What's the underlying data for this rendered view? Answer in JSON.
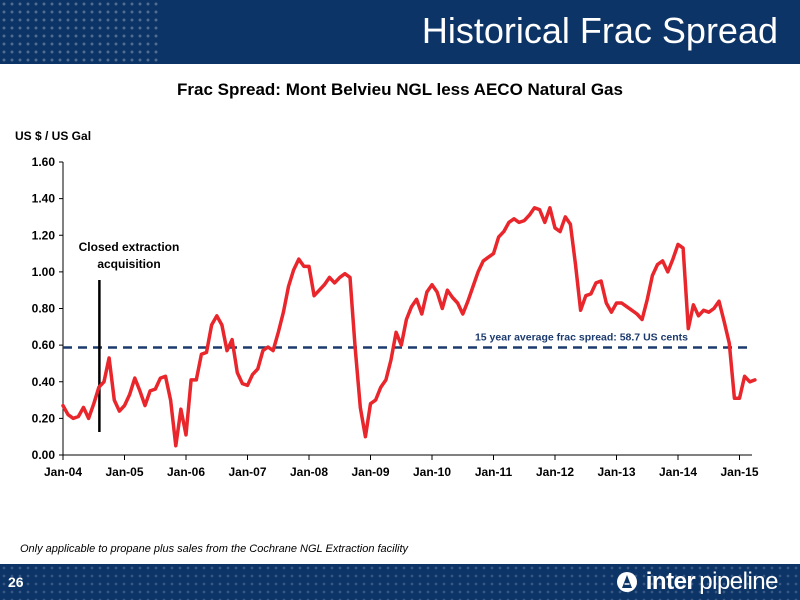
{
  "header": {
    "title": "Historical Frac Spread"
  },
  "footer": {
    "page_number": "26",
    "logo_text_bold": "inter",
    "logo_text_light": "pipeline",
    "footnote": "Only applicable to propane plus sales from the Cochrane NGL Extraction facility"
  },
  "colors": {
    "navy": "#0d3467",
    "line": "#e8262b",
    "average": "#1c3a6e",
    "grid": "#000000"
  },
  "chart_data": {
    "type": "line",
    "title": "Frac Spread: Mont Belvieu NGL less AECO Natural Gas",
    "ylabel": "US $ / US Gal",
    "xlabel": "",
    "ylim": [
      0,
      1.6
    ],
    "yticks": [
      "0.00",
      "0.20",
      "0.40",
      "0.60",
      "0.80",
      "1.00",
      "1.20",
      "1.40",
      "1.60"
    ],
    "xticks": [
      "Jan-04",
      "Jan-05",
      "Jan-06",
      "Jan-07",
      "Jan-08",
      "Jan-09",
      "Jan-10",
      "Jan-11",
      "Jan-12",
      "Jan-13",
      "Jan-14",
      "Jan-15"
    ],
    "grid": false,
    "series": [
      {
        "start": "Jan-04",
        "frequency": "monthly",
        "values": [
          0.27,
          0.22,
          0.2,
          0.21,
          0.26,
          0.2,
          0.28,
          0.37,
          0.4,
          0.53,
          0.3,
          0.24,
          0.27,
          0.33,
          0.42,
          0.35,
          0.27,
          0.35,
          0.36,
          0.42,
          0.43,
          0.3,
          0.05,
          0.25,
          0.11,
          0.41,
          0.41,
          0.55,
          0.56,
          0.71,
          0.76,
          0.71,
          0.57,
          0.63,
          0.45,
          0.39,
          0.38,
          0.44,
          0.47,
          0.57,
          0.59,
          0.57,
          0.67,
          0.78,
          0.92,
          1.01,
          1.07,
          1.03,
          1.03,
          0.87,
          0.9,
          0.93,
          0.97,
          0.94,
          0.97,
          0.99,
          0.97,
          0.59,
          0.26,
          0.1,
          0.28,
          0.3,
          0.37,
          0.41,
          0.52,
          0.67,
          0.6,
          0.74,
          0.81,
          0.85,
          0.77,
          0.89,
          0.93,
          0.89,
          0.8,
          0.9,
          0.86,
          0.83,
          0.77,
          0.84,
          0.92,
          1.0,
          1.06,
          1.08,
          1.1,
          1.19,
          1.22,
          1.27,
          1.29,
          1.27,
          1.28,
          1.31,
          1.35,
          1.34,
          1.27,
          1.35,
          1.24,
          1.22,
          1.3,
          1.26,
          1.04,
          0.79,
          0.87,
          0.88,
          0.94,
          0.95,
          0.83,
          0.78,
          0.83,
          0.83,
          0.81,
          0.79,
          0.77,
          0.74,
          0.85,
          0.98,
          1.04,
          1.06,
          1.0,
          1.07,
          1.15,
          1.13,
          0.69,
          0.82,
          0.76,
          0.79,
          0.78,
          0.8,
          0.84,
          0.73,
          0.61,
          0.31,
          0.31,
          0.43,
          0.4,
          0.41
        ]
      }
    ],
    "average": {
      "value": 0.587,
      "label": "15 year average frac spread: 58.7 US cents"
    },
    "annotation": {
      "label_line1": "Closed extraction",
      "label_line2": "acquisition",
      "at": "Aug-04"
    }
  }
}
